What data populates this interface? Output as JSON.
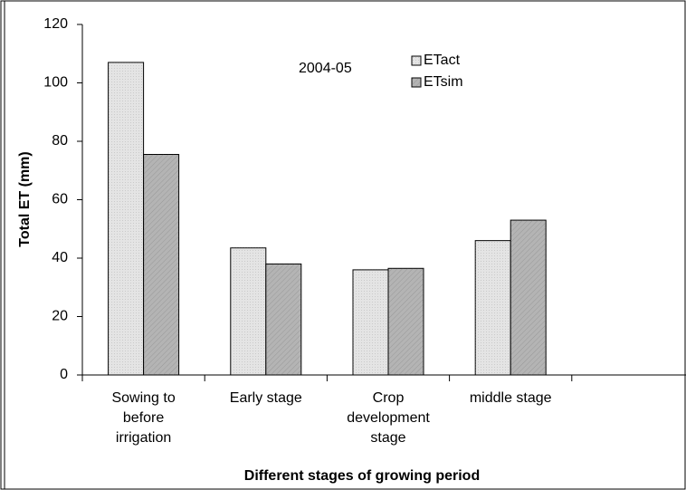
{
  "chart_data": {
    "type": "bar",
    "annotation": "2004-05",
    "ylabel": "Total  ET (mm)",
    "xlabel": "Different stages of growing period",
    "categories": [
      "Sowing to\nbefore\nirrigation",
      "Early stage",
      "Crop\ndevelopment\nstage",
      "middle stage",
      null
    ],
    "series": [
      {
        "name": "ETact",
        "color": "#e4e4e4",
        "values": [
          107,
          43.5,
          36,
          46,
          null
        ]
      },
      {
        "name": "ETsim",
        "color": "#b4b4b4",
        "values": [
          75.5,
          38,
          36.5,
          53,
          null
        ]
      }
    ],
    "ylim": [
      0,
      120
    ],
    "yticks": [
      0,
      20,
      40,
      60,
      80,
      100,
      120
    ]
  }
}
